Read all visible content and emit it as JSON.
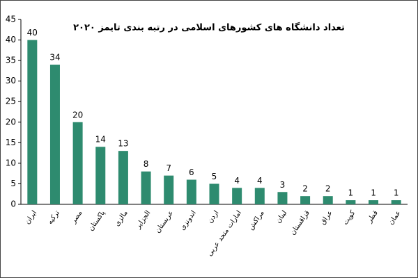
{
  "chart_data": {
    "type": "bar",
    "title": "تعداد دانشگاه های کشورهای اسلامی در رتبه بندی تایمز ۲۰۲۰",
    "categories": [
      "ایران",
      "ترکیه",
      "مصر",
      "پاکستان",
      "مالزی",
      "الجزایر",
      "عربستان",
      "اندونزی",
      "اردن",
      "امارات متحد عربی",
      "مراکش",
      "لبنان",
      "قزاقستان",
      "عراق",
      "کویت",
      "قطر",
      "عمان"
    ],
    "values": [
      40,
      34,
      20,
      14,
      13,
      8,
      7,
      6,
      5,
      4,
      4,
      3,
      2,
      2,
      1,
      1,
      1
    ],
    "color": "#2e8b6f",
    "ylim": [
      0,
      45
    ],
    "yticks": [
      0,
      5,
      10,
      15,
      20,
      25,
      30,
      35,
      40,
      45
    ],
    "grid": false
  }
}
